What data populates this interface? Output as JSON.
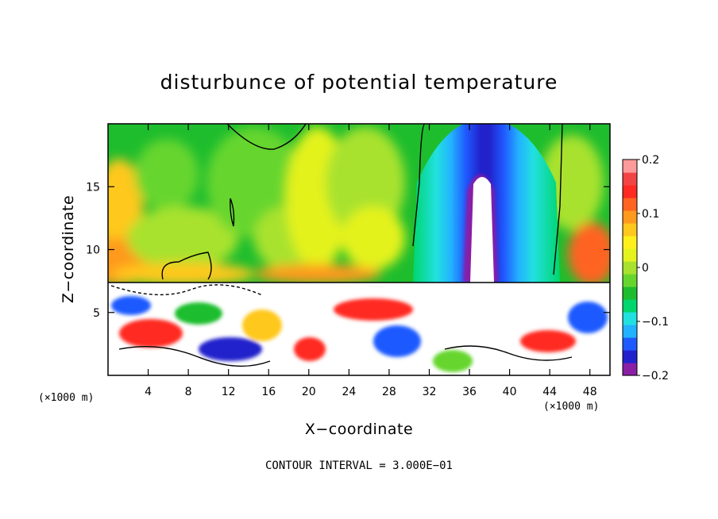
{
  "chart_data": {
    "type": "heatmap",
    "title": "disturbunce of potential temperature",
    "xlabel": "X−coordinate",
    "ylabel": "Z−coordinate",
    "x_unit_left": "(×1000 m)",
    "x_unit_right": "(×1000 m)",
    "xlim": [
      0,
      50
    ],
    "ylim": [
      0,
      20
    ],
    "x_ticks": [
      4,
      8,
      12,
      16,
      20,
      24,
      28,
      32,
      36,
      40,
      44,
      48
    ],
    "x_tick_labels": [
      "4",
      "8",
      "12",
      "16",
      "20",
      "24",
      "28",
      "32",
      "36",
      "40",
      "44",
      "48"
    ],
    "y_ticks": [
      5,
      10,
      15
    ],
    "y_tick_labels": [
      "5",
      "10",
      "15"
    ],
    "colorbar": {
      "range": [
        -0.2,
        0.2
      ],
      "ticks": [
        0.2,
        0.1,
        0,
        -0.1,
        -0.2
      ],
      "tick_labels": [
        "0.2",
        "0.1",
        "0",
        "−0.1",
        "−0.2"
      ],
      "colors": [
        "#8a1fa6",
        "#2222cc",
        "#1f5aff",
        "#23b2ff",
        "#22e0e0",
        "#00d66e",
        "#1ebd2e",
        "#66d62e",
        "#a8e22e",
        "#e4f21e",
        "#fff01c",
        "#ffc81e",
        "#ff9a1e",
        "#ff6422",
        "#ff2a22",
        "#f24444",
        "#ff9a9a"
      ]
    },
    "grid": false,
    "footer": "CONTOUR INTERVAL = 3.000E−01",
    "contour_interval": 0.3
  }
}
